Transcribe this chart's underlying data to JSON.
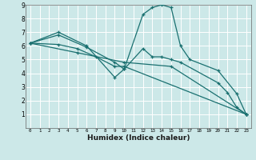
{
  "xlabel": "Humidex (Indice chaleur)",
  "bg_color": "#cce8e8",
  "line_color": "#1a7070",
  "grid_color": "#ffffff",
  "xlim": [
    -0.5,
    23.5
  ],
  "ylim": [
    0,
    9
  ],
  "series": [
    {
      "x": [
        0,
        3,
        6,
        9,
        10,
        12,
        13,
        14,
        15,
        16,
        17,
        20,
        22,
        23
      ],
      "y": [
        6.2,
        7.0,
        6.0,
        3.7,
        4.3,
        8.3,
        8.8,
        9.0,
        8.8,
        6.0,
        5.0,
        4.2,
        2.5,
        1.0
      ]
    },
    {
      "x": [
        0,
        3,
        6,
        9,
        10,
        12,
        13,
        14,
        15,
        16,
        20,
        21,
        22,
        23
      ],
      "y": [
        6.2,
        6.8,
        5.9,
        4.8,
        4.3,
        5.8,
        5.2,
        5.2,
        5.0,
        4.8,
        3.3,
        2.6,
        1.5,
        1.0
      ]
    },
    {
      "x": [
        0,
        3,
        5,
        7,
        9,
        10,
        23
      ],
      "y": [
        6.2,
        6.1,
        5.8,
        5.2,
        4.5,
        4.5,
        1.0
      ]
    },
    {
      "x": [
        0,
        5,
        10,
        15,
        23
      ],
      "y": [
        6.2,
        5.5,
        4.8,
        4.5,
        1.0
      ]
    }
  ]
}
